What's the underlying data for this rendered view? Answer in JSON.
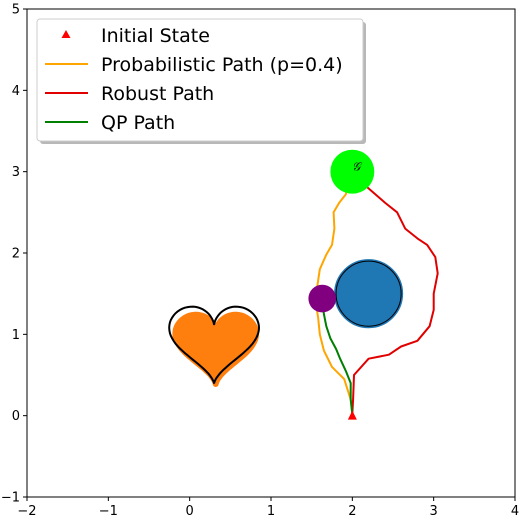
{
  "colors": {
    "probabilistic": "#ffa500",
    "robust": "#e00000",
    "qp": "#007f00",
    "initial": "#ff0000",
    "heart_fill": "#ff7f0e",
    "circle_fill": "#1f77b4",
    "purple": "#800080",
    "goal": "#00ff00"
  },
  "chart_data": {
    "type": "line",
    "title": "",
    "xlabel": "",
    "ylabel": "",
    "xlim": [
      -2,
      4
    ],
    "ylim": [
      -1,
      5
    ],
    "x_ticks": [
      -2,
      -1,
      0,
      1,
      2,
      3,
      4
    ],
    "y_ticks": [
      -1,
      0,
      1,
      2,
      3,
      4,
      5
    ],
    "x_tick_labels": [
      "−2",
      "−1",
      "0",
      "1",
      "2",
      "3",
      "4"
    ],
    "y_tick_labels": [
      "−1",
      "0",
      "1",
      "2",
      "3",
      "4",
      "5"
    ],
    "grid": false,
    "legend_placement": "top-left",
    "legend": [
      {
        "label": "Initial State",
        "kind": "marker",
        "color": "#ff0000"
      },
      {
        "label": "Probabilistic Path (p=0.4)",
        "kind": "line",
        "color": "#ffa500"
      },
      {
        "label": "Robust Path",
        "kind": "line",
        "color": "#e00000"
      },
      {
        "label": "QP Path",
        "kind": "line",
        "color": "#007f00"
      }
    ],
    "initial_state": {
      "x": 2.0,
      "y": 0.0
    },
    "goal": {
      "x": 2.0,
      "y": 3.0,
      "radius": 0.27,
      "label": "𝒢"
    },
    "obstacles": {
      "circle_blue": {
        "x": 2.2,
        "y": 1.5,
        "radius": 0.4
      },
      "circle_outline": {
        "x": 2.2,
        "y": 1.5,
        "radius": 0.4
      },
      "purple_dot": {
        "x": 1.63,
        "y": 1.44,
        "radius": 0.17
      },
      "heart_center": {
        "x": 0.3,
        "y": 0.95
      }
    },
    "series": [
      {
        "name": "Probabilistic Path (p=0.4)",
        "points": [
          [
            2.0,
            0.02
          ],
          [
            1.98,
            0.2
          ],
          [
            1.9,
            0.45
          ],
          [
            1.75,
            0.6
          ],
          [
            1.65,
            0.8
          ],
          [
            1.6,
            1.0
          ],
          [
            1.58,
            1.2
          ],
          [
            1.55,
            1.4
          ],
          [
            1.57,
            1.6
          ],
          [
            1.6,
            1.8
          ],
          [
            1.68,
            1.98
          ],
          [
            1.75,
            2.1
          ],
          [
            1.78,
            2.3
          ],
          [
            1.77,
            2.5
          ],
          [
            1.84,
            2.62
          ],
          [
            1.92,
            2.72
          ],
          [
            1.95,
            2.85
          ],
          [
            1.97,
            3.0
          ]
        ]
      },
      {
        "name": "Robust Path",
        "points": [
          [
            2.0,
            0.02
          ],
          [
            2.01,
            0.2
          ],
          [
            2.02,
            0.5
          ],
          [
            2.2,
            0.7
          ],
          [
            2.45,
            0.75
          ],
          [
            2.6,
            0.85
          ],
          [
            2.8,
            0.92
          ],
          [
            2.95,
            1.1
          ],
          [
            3.0,
            1.3
          ],
          [
            3.0,
            1.5
          ],
          [
            3.05,
            1.75
          ],
          [
            3.02,
            1.95
          ],
          [
            2.92,
            2.1
          ],
          [
            2.8,
            2.18
          ],
          [
            2.65,
            2.3
          ],
          [
            2.55,
            2.5
          ],
          [
            2.4,
            2.62
          ],
          [
            2.25,
            2.75
          ],
          [
            2.1,
            2.88
          ]
        ]
      },
      {
        "name": "QP Path",
        "points": [
          [
            2.0,
            0.02
          ],
          [
            1.98,
            0.2
          ],
          [
            1.98,
            0.4
          ],
          [
            1.92,
            0.55
          ],
          [
            1.85,
            0.7
          ],
          [
            1.8,
            0.82
          ],
          [
            1.73,
            0.95
          ],
          [
            1.68,
            1.1
          ],
          [
            1.65,
            1.25
          ],
          [
            1.63,
            1.4
          ]
        ]
      }
    ]
  }
}
